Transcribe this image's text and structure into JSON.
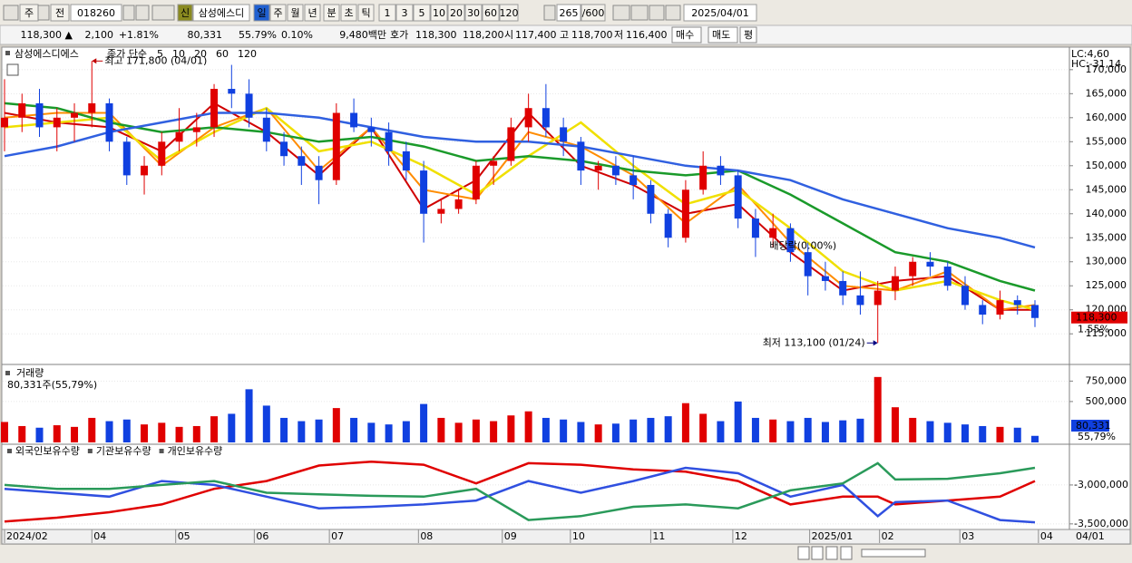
{
  "toolbar": {
    "items": [
      "주",
      "전",
      "018260",
      "신",
      "삼성에스디",
      "일",
      "주",
      "월",
      "년",
      "분",
      "초",
      "틱",
      "1",
      "3",
      "5",
      "10",
      "20",
      "30",
      "60",
      "120",
      "265",
      "/600",
      "2025/04/01"
    ]
  },
  "info_bar": {
    "items": [
      "118,300 ▲",
      "2,100",
      "+1.81%",
      "80,331",
      "55.79%",
      "0.10%",
      "9,480백만",
      "호가",
      "118,300",
      "118,200",
      "시",
      "117,400",
      "고",
      "118,700",
      "저",
      "116,400",
      "매수",
      "매도",
      "평"
    ]
  },
  "chart_data": [
    {
      "type": "candlestick",
      "title": "삼성에스디에스",
      "subtitle": "종가 단순",
      "subtitle_color": "#d00000",
      "up_color": "#e00000",
      "down_color": "#1040e0",
      "xlim": [
        0,
        60
      ],
      "ylim": [
        109000,
        174500
      ],
      "yticks": [
        {
          "value": 170000,
          "label": "170,000"
        },
        {
          "value": 165000,
          "label": "165,000"
        },
        {
          "value": 160000,
          "label": "160,000"
        },
        {
          "value": 155000,
          "label": "155,000"
        },
        {
          "value": 150000,
          "label": "150,000"
        },
        {
          "value": 145000,
          "label": "145,000"
        },
        {
          "value": 140000,
          "label": "140,000"
        },
        {
          "value": 135000,
          "label": "135,000"
        },
        {
          "value": 130000,
          "label": "130,000"
        },
        {
          "value": 125000,
          "label": "125,000"
        },
        {
          "value": 120000,
          "label": "120,000"
        },
        {
          "value": 115000,
          "label": "115,000"
        }
      ],
      "grid": true,
      "x": [
        0,
        1,
        2,
        3,
        4,
        5,
        6,
        7,
        8,
        9,
        10,
        11,
        12,
        13,
        14,
        15,
        16,
        17,
        18,
        19,
        20,
        21,
        22,
        23,
        24,
        25,
        26,
        27,
        28,
        29,
        30,
        31,
        32,
        33,
        34,
        35,
        36,
        37,
        38,
        39,
        40,
        41,
        42,
        43,
        44,
        45,
        46,
        47,
        48,
        49,
        50,
        51,
        52,
        53,
        54,
        55,
        56,
        57,
        58,
        59
      ],
      "ohlc": [
        [
          158000,
          168000,
          153000,
          160000
        ],
        [
          160000,
          165000,
          157000,
          163000
        ],
        [
          163000,
          166000,
          156000,
          158000
        ],
        [
          158000,
          162000,
          153000,
          160000
        ],
        [
          160000,
          163000,
          155000,
          161000
        ],
        [
          161000,
          171800,
          158000,
          163000
        ],
        [
          163000,
          164000,
          153000,
          155000
        ],
        [
          155000,
          156000,
          146000,
          148000
        ],
        [
          148000,
          152000,
          144000,
          150000
        ],
        [
          150000,
          157000,
          148000,
          155000
        ],
        [
          155000,
          162000,
          153000,
          157000
        ],
        [
          157000,
          161000,
          154000,
          158000
        ],
        [
          158000,
          167000,
          156000,
          166000
        ],
        [
          166000,
          171000,
          162000,
          165000
        ],
        [
          165000,
          168000,
          158000,
          160000
        ],
        [
          160000,
          162000,
          153000,
          155000
        ],
        [
          155000,
          157000,
          150000,
          152000
        ],
        [
          152000,
          154000,
          146000,
          150000
        ],
        [
          150000,
          152000,
          142000,
          147000
        ],
        [
          147000,
          163000,
          146000,
          161000
        ],
        [
          161000,
          164000,
          157000,
          158000
        ],
        [
          158000,
          160000,
          154000,
          157000
        ],
        [
          157000,
          159000,
          150000,
          153000
        ],
        [
          153000,
          155000,
          147000,
          149000
        ],
        [
          149000,
          151000,
          134000,
          140000
        ],
        [
          140000,
          143000,
          138000,
          141000
        ],
        [
          141000,
          145000,
          140000,
          143000
        ],
        [
          143000,
          151000,
          142000,
          150000
        ],
        [
          150000,
          152000,
          146000,
          151000
        ],
        [
          151000,
          160000,
          150000,
          158000
        ],
        [
          158000,
          165000,
          155000,
          162000
        ],
        [
          162000,
          167000,
          156000,
          158000
        ],
        [
          158000,
          160000,
          152000,
          155000
        ],
        [
          155000,
          156000,
          146000,
          149000
        ],
        [
          149000,
          151000,
          145000,
          150000
        ],
        [
          150000,
          152000,
          146000,
          148000
        ],
        [
          148000,
          152000,
          143000,
          146000
        ],
        [
          146000,
          147000,
          138000,
          140000
        ],
        [
          140000,
          141000,
          133000,
          135000
        ],
        [
          135000,
          147000,
          134000,
          145000
        ],
        [
          145000,
          153000,
          144000,
          150000
        ],
        [
          150000,
          152000,
          146000,
          148000
        ],
        [
          148000,
          149000,
          137000,
          139000
        ],
        [
          139000,
          141000,
          131000,
          135000
        ],
        [
          135000,
          140000,
          133000,
          137000
        ],
        [
          137000,
          138000,
          130000,
          132000
        ],
        [
          132000,
          134000,
          123000,
          127000
        ],
        [
          127000,
          130000,
          124000,
          126000
        ],
        [
          126000,
          128000,
          121000,
          123000
        ],
        [
          123000,
          128000,
          119000,
          121000
        ],
        [
          121000,
          126000,
          113100,
          124000
        ],
        [
          124000,
          129000,
          122000,
          127000
        ],
        [
          127000,
          131000,
          125000,
          130000
        ],
        [
          130000,
          132000,
          127000,
          129000
        ],
        [
          129000,
          130000,
          124000,
          125000
        ],
        [
          125000,
          127000,
          120000,
          121000
        ],
        [
          121000,
          122000,
          117000,
          119000
        ],
        [
          119000,
          124000,
          118000,
          122000
        ],
        [
          122000,
          123000,
          119000,
          121000
        ],
        [
          121000,
          122000,
          116400,
          118300
        ]
      ],
      "series": [
        {
          "name": "5",
          "color": "#d00000",
          "x": [
            0,
            3,
            6,
            9,
            12,
            15,
            18,
            21,
            24,
            27,
            30,
            33,
            36,
            39,
            42,
            45,
            48,
            51,
            54,
            57,
            59
          ],
          "values": [
            161000,
            159000,
            158000,
            153000,
            163000,
            157000,
            148000,
            158000,
            141000,
            147000,
            161000,
            150000,
            146000,
            140000,
            142000,
            132000,
            124000,
            126000,
            127000,
            120000,
            120000
          ]
        },
        {
          "name": "10",
          "color": "#ff8c00",
          "x": [
            0,
            3,
            6,
            9,
            12,
            15,
            18,
            21,
            24,
            27,
            30,
            33,
            36,
            39,
            42,
            45,
            48,
            51,
            54,
            57,
            59
          ],
          "values": [
            160000,
            161000,
            161000,
            150000,
            158000,
            162000,
            149000,
            158000,
            145000,
            143000,
            157000,
            154000,
            148000,
            138000,
            146000,
            134000,
            125000,
            124000,
            128000,
            120000,
            121000
          ]
        },
        {
          "name": "20",
          "color": "#f0e000",
          "x": [
            0,
            3,
            6,
            9,
            12,
            15,
            18,
            21,
            24,
            27,
            30,
            33,
            36,
            39,
            42,
            45,
            48,
            51,
            54,
            57,
            59
          ],
          "values": [
            158000,
            159000,
            160000,
            151000,
            157000,
            162000,
            153000,
            155000,
            150000,
            144000,
            152000,
            159000,
            150000,
            142000,
            145000,
            137000,
            128000,
            124000,
            126000,
            122000,
            120000
          ]
        },
        {
          "name": "60",
          "color": "#1a9a2a",
          "x": [
            0,
            3,
            6,
            9,
            12,
            15,
            18,
            21,
            24,
            27,
            30,
            33,
            36,
            39,
            42,
            45,
            48,
            51,
            54,
            57,
            59
          ],
          "values": [
            163000,
            162000,
            159000,
            157000,
            158000,
            157000,
            155000,
            156000,
            154000,
            151000,
            152000,
            151000,
            149000,
            148000,
            149000,
            144000,
            138000,
            132000,
            130000,
            126000,
            124000
          ]
        },
        {
          "name": "120",
          "color": "#3060e0",
          "x": [
            0,
            3,
            6,
            9,
            12,
            15,
            18,
            21,
            24,
            27,
            30,
            33,
            36,
            39,
            42,
            45,
            48,
            51,
            54,
            57,
            59
          ],
          "values": [
            152000,
            154000,
            157000,
            159000,
            161000,
            161000,
            160000,
            158000,
            156000,
            155000,
            155000,
            154000,
            152000,
            150000,
            149000,
            147000,
            143000,
            140000,
            137000,
            135000,
            133000
          ]
        }
      ],
      "annotations": [
        {
          "text": "최고 171,800 (04/01)",
          "x": 5,
          "y": 171800,
          "side": "right",
          "arrow": true,
          "color": "#c00000"
        },
        {
          "text": "최저 113,100 (01/24)",
          "x": 50,
          "y": 113100,
          "side": "left",
          "arrow": true,
          "color": "#000080"
        },
        {
          "text": "배당락(0.00%)",
          "x": 43.8,
          "y": 133300,
          "side": "right",
          "arrow": false,
          "color": "#000000"
        }
      ],
      "right_labels": [
        "LC:4,60",
        "HC:-31,14"
      ],
      "last": {
        "value": 118300,
        "label": "118,300"
      },
      "change_label": "1.55%"
    },
    {
      "type": "bar",
      "title": "거래량",
      "subtitle": "80,331주(55,79%)",
      "xlim": [
        0,
        60
      ],
      "ylim": [
        0,
        909000
      ],
      "yticks": [
        {
          "value": 750000,
          "label": "750,000"
        },
        {
          "value": 500000,
          "label": "500,000"
        }
      ],
      "x": [
        0,
        1,
        2,
        3,
        4,
        5,
        6,
        7,
        8,
        9,
        10,
        11,
        12,
        13,
        14,
        15,
        16,
        17,
        18,
        19,
        20,
        21,
        22,
        23,
        24,
        25,
        26,
        27,
        28,
        29,
        30,
        31,
        32,
        33,
        34,
        35,
        36,
        37,
        38,
        39,
        40,
        41,
        42,
        43,
        44,
        45,
        46,
        47,
        48,
        49,
        50,
        51,
        52,
        53,
        54,
        55,
        56,
        57,
        58,
        59
      ],
      "values": [
        250000,
        200000,
        180000,
        210000,
        190000,
        300000,
        260000,
        280000,
        220000,
        240000,
        190000,
        200000,
        320000,
        350000,
        650000,
        450000,
        300000,
        260000,
        280000,
        420000,
        300000,
        240000,
        220000,
        260000,
        470000,
        300000,
        240000,
        280000,
        260000,
        330000,
        380000,
        300000,
        280000,
        250000,
        220000,
        230000,
        280000,
        300000,
        320000,
        480000,
        350000,
        260000,
        500000,
        300000,
        280000,
        260000,
        300000,
        250000,
        270000,
        290000,
        800000,
        430000,
        300000,
        260000,
        240000,
        220000,
        200000,
        190000,
        180000,
        80331
      ],
      "last_labels": [
        "80,331",
        "55,79%"
      ]
    },
    {
      "type": "line",
      "xlim": [
        0,
        60
      ],
      "ylim": [
        -3560000,
        -2500000
      ],
      "yticks": [
        {
          "value": -3000000,
          "label": "-3,000,000"
        },
        {
          "value": -3500000,
          "label": "-3,500,000"
        }
      ],
      "xticks": [
        {
          "value": 0,
          "label": "2024/02"
        },
        {
          "value": 5,
          "label": "04"
        },
        {
          "value": 9.8,
          "label": "05"
        },
        {
          "value": 14.3,
          "label": "06"
        },
        {
          "value": 18.6,
          "label": "07"
        },
        {
          "value": 23.7,
          "label": "08"
        },
        {
          "value": 28.5,
          "label": "09"
        },
        {
          "value": 32.4,
          "label": "10"
        },
        {
          "value": 37,
          "label": "11"
        },
        {
          "value": 41.7,
          "label": "12"
        },
        {
          "value": 46.1,
          "label": "2025/01"
        },
        {
          "value": 50.1,
          "label": "02"
        },
        {
          "value": 54.7,
          "label": "03"
        },
        {
          "value": 59.2,
          "label": "04"
        }
      ],
      "xend_label": "04/01",
      "x": [
        0,
        3,
        6,
        9,
        12,
        15,
        18,
        21,
        24,
        27,
        30,
        33,
        36,
        39,
        42,
        45,
        48,
        50,
        51,
        54,
        57,
        59
      ],
      "series": [
        {
          "name": "외국인보유수량",
          "color": "#e00000",
          "values": [
            -3470000,
            -3420000,
            -3350000,
            -3250000,
            -3050000,
            -2950000,
            -2750000,
            -2700000,
            -2740000,
            -2980000,
            -2720000,
            -2740000,
            -2800000,
            -2830000,
            -2950000,
            -3250000,
            -3150000,
            -3150000,
            -3250000,
            -3200000,
            -3150000,
            -2950000
          ]
        },
        {
          "name": "기관보유수량",
          "color": "#3050e0",
          "values": [
            -3050000,
            -3100000,
            -3150000,
            -2950000,
            -3000000,
            -3150000,
            -3300000,
            -3280000,
            -3250000,
            -3200000,
            -2950000,
            -3100000,
            -2950000,
            -2780000,
            -2850000,
            -3150000,
            -3000000,
            -3400000,
            -3220000,
            -3200000,
            -3450000,
            -3480000
          ]
        },
        {
          "name": "개인보유수량",
          "color": "#2a9a5a",
          "values": [
            -3000000,
            -3050000,
            -3050000,
            -3000000,
            -2950000,
            -3100000,
            -3120000,
            -3140000,
            -3150000,
            -3050000,
            -3450000,
            -3400000,
            -3280000,
            -3250000,
            -3300000,
            -3070000,
            -2980000,
            -2720000,
            -2930000,
            -2920000,
            -2850000,
            -2780000
          ]
        }
      ]
    }
  ]
}
